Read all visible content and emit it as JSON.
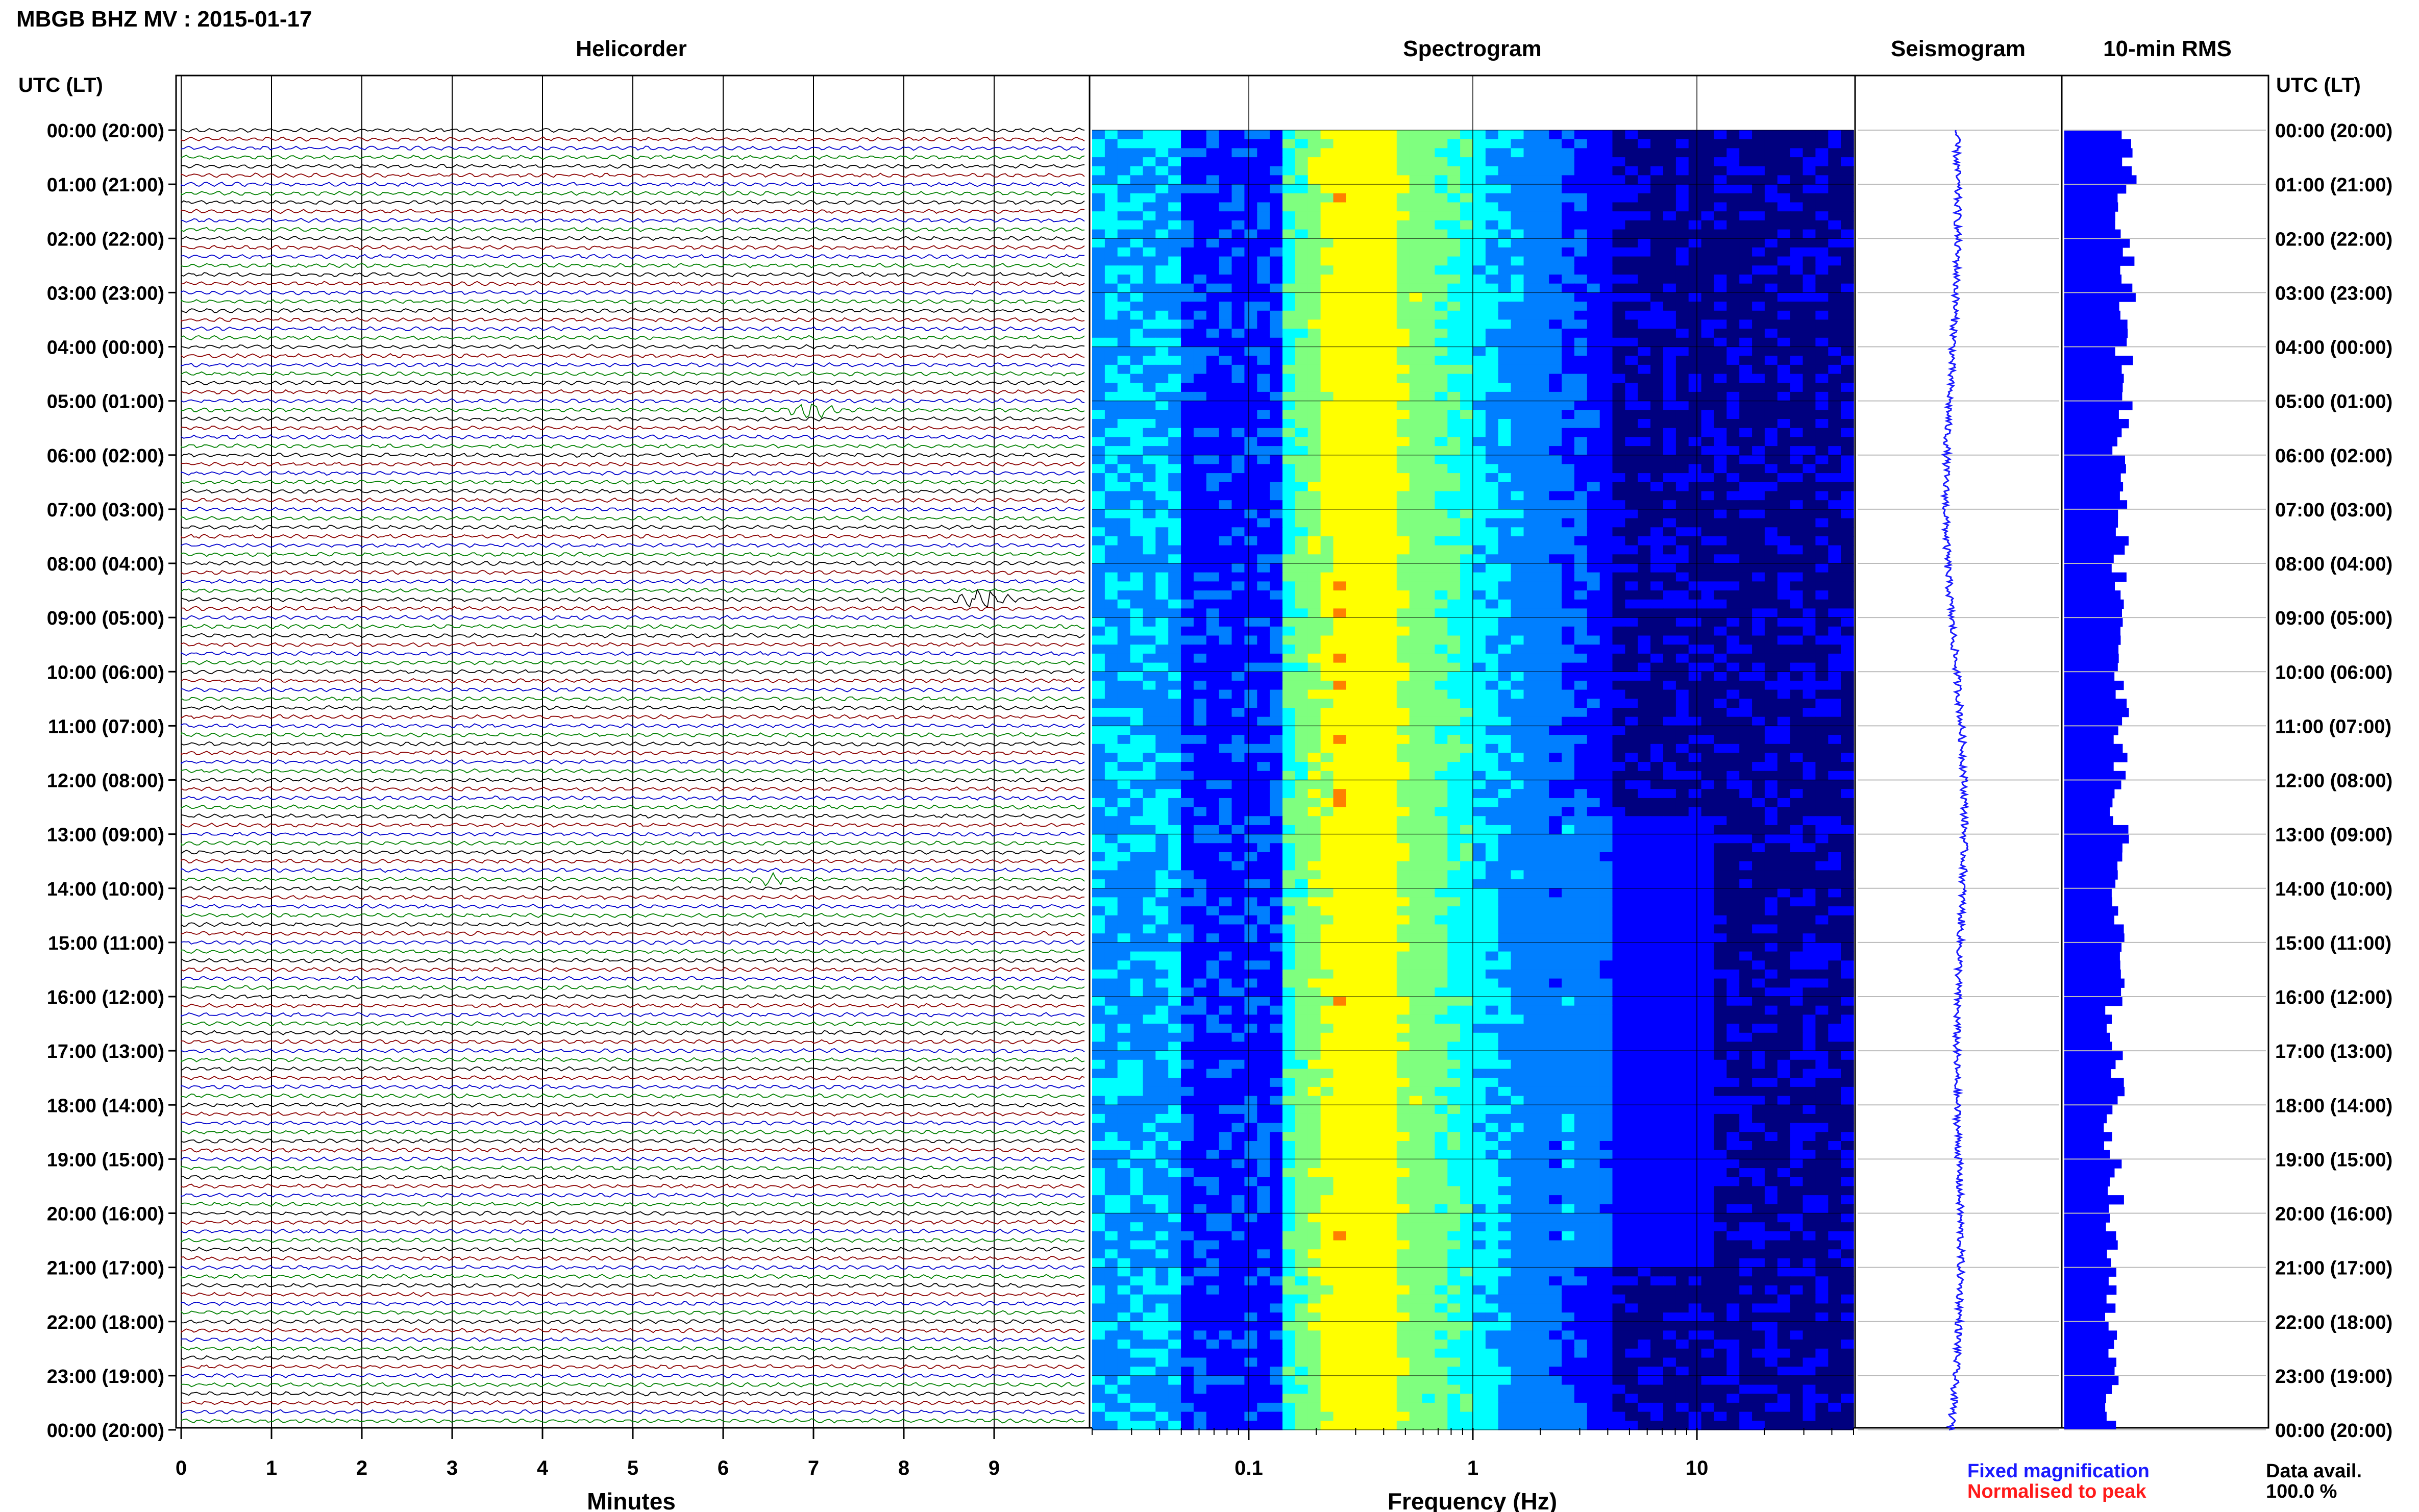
{
  "header": {
    "title": "MBGB BHZ MV : 2015-01-17",
    "utc_label": "UTC (LT)"
  },
  "panels": {
    "helicorder": "Helicorder",
    "spectrogram": "Spectrogram",
    "seismogram": "Seismogram",
    "rms": "10-min RMS"
  },
  "time_labels": [
    "00:00 (20:00)",
    "01:00 (21:00)",
    "02:00 (22:00)",
    "03:00 (23:00)",
    "04:00 (00:00)",
    "05:00 (01:00)",
    "06:00 (02:00)",
    "07:00 (03:00)",
    "08:00 (04:00)",
    "09:00 (05:00)",
    "10:00 (06:00)",
    "11:00 (07:00)",
    "12:00 (08:00)",
    "13:00 (09:00)",
    "14:00 (10:00)",
    "15:00 (11:00)",
    "16:00 (12:00)",
    "17:00 (13:00)",
    "18:00 (14:00)",
    "19:00 (15:00)",
    "20:00 (16:00)",
    "21:00 (17:00)",
    "22:00 (18:00)",
    "23:00 (19:00)",
    "00:00 (20:00)"
  ],
  "axes": {
    "minutes_label": "Minutes",
    "frequency_label": "Frequency (Hz)"
  },
  "legend": {
    "fixed": "Fixed magnification",
    "normalised": "Normalised to peak",
    "fixed_color": "#1a1aff",
    "normalised_color": "#ff1a1a"
  },
  "data_avail": {
    "label": "Data avail.",
    "value": "100.0 %"
  },
  "chart_data": [
    {
      "type": "line",
      "title": "Helicorder",
      "xlabel": "Minutes",
      "x_ticks": [
        "0",
        "1",
        "2",
        "3",
        "4",
        "5",
        "6",
        "7",
        "8",
        "9"
      ],
      "xlim": [
        0,
        10
      ],
      "trace_colors": [
        "#000000",
        "#8b0000",
        "#0000cc",
        "#008000"
      ],
      "traces_per_hour": 6,
      "events": [
        {
          "hour": 5,
          "trace": 1,
          "minute": 7.0,
          "amp": 4
        },
        {
          "hour": 8,
          "trace": 4,
          "minute": 8.9,
          "amp": 6
        },
        {
          "hour": 13,
          "trace": 5,
          "minute": 6.5,
          "amp": 2.5
        }
      ]
    },
    {
      "type": "heatmap",
      "title": "Spectrogram",
      "xlabel": "Frequency (Hz)",
      "x_ticks": [
        "0.1",
        "1",
        "10"
      ],
      "xscale": "log",
      "xlim": [
        0.02,
        50
      ],
      "colormap": [
        "#00007f",
        "#0000ff",
        "#007fff",
        "#00ffff",
        "#7fff7f",
        "#ffff00",
        "#ff7f00"
      ]
    },
    {
      "type": "line",
      "title": "Seismogram",
      "color": "#1a1aff"
    },
    {
      "type": "bar",
      "title": "10-min RMS",
      "color": "#0000ff",
      "bins": 144
    }
  ]
}
